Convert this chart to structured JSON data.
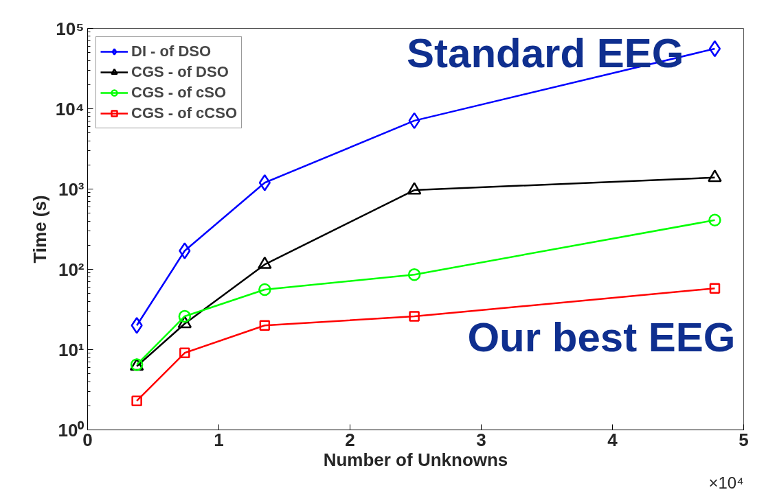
{
  "chart_data": {
    "type": "line",
    "xlabel": "Number of Unknowns",
    "ylabel": "Time (s)",
    "x": [
      0.375,
      0.74,
      1.35,
      2.49,
      4.78
    ],
    "series": [
      {
        "name": "DI - of DSO",
        "color": "#0000ff",
        "marker": "diamond",
        "values": [
          20,
          170,
          1200,
          7100,
          56000
        ]
      },
      {
        "name": "CGS - of DSO",
        "color": "#000000",
        "marker": "triangle",
        "values": [
          6.2,
          21,
          115,
          970,
          1390
        ]
      },
      {
        "name": "CGS - of cSO",
        "color": "#00ff00",
        "marker": "circle",
        "values": [
          6.5,
          26,
          56,
          86,
          410
        ]
      },
      {
        "name": "CGS - of cCSO",
        "color": "#ff0000",
        "marker": "square",
        "values": [
          2.3,
          9.1,
          20,
          26,
          58
        ]
      }
    ],
    "log": "y",
    "grid": false,
    "legend": "top left",
    "line_style": "solid",
    "xlim": [
      0,
      5
    ],
    "xticks": [
      0,
      1,
      2,
      3,
      4,
      5
    ],
    "ylim": [
      1,
      100000
    ],
    "yticks": [
      {
        "value": 1,
        "label": "10⁰"
      },
      {
        "value": 10,
        "label": "10¹"
      },
      {
        "value": 100,
        "label": "10²"
      },
      {
        "value": 1000,
        "label": "10³"
      },
      {
        "value": 10000,
        "label": "10⁴"
      },
      {
        "value": 100000,
        "label": "10⁵"
      }
    ],
    "annotations": [
      "×10⁴",
      "Standard EEG",
      "Our best EEG"
    ]
  }
}
